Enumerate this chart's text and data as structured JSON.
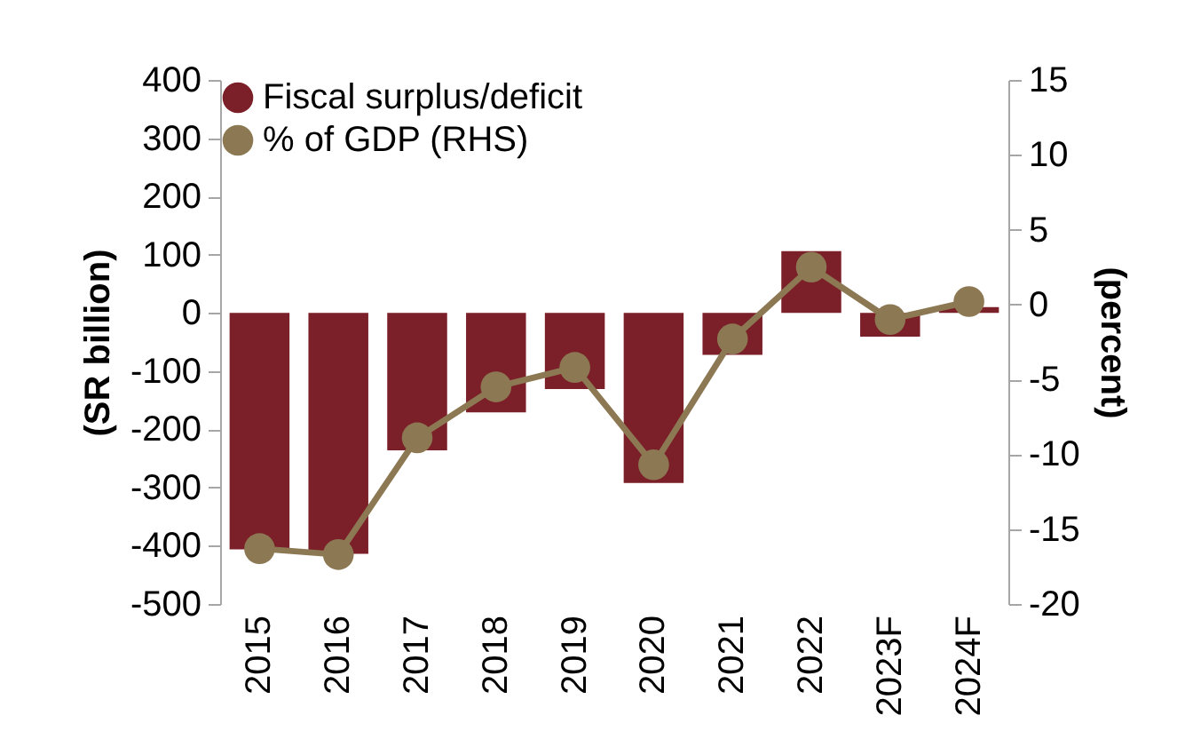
{
  "chart_data": {
    "type": "bar",
    "categories": [
      "2015",
      "2016",
      "2017",
      "2018",
      "2019",
      "2020",
      "2021",
      "2022",
      "2023F",
      "2024F"
    ],
    "series": [
      {
        "name": "Fiscal surplus/deficit",
        "color": "#7b1f28",
        "values": [
          -406,
          -414,
          -236,
          -171,
          -131,
          -292,
          -72,
          106,
          -41,
          10
        ]
      },
      {
        "name": "% of GDP (RHS)",
        "color": "#8c7853",
        "type": "line",
        "axis": "y2",
        "values": [
          -16.3,
          -16.7,
          -8.9,
          -5.5,
          -4.2,
          -10.7,
          -2.3,
          2.5,
          -1.0,
          0.2
        ]
      }
    ],
    "ylabel": "(SR billion)",
    "y2label": "(percent)",
    "ylim": [
      -500,
      400
    ],
    "yticks": [
      -500,
      -400,
      -300,
      -200,
      -100,
      0,
      100,
      200,
      300,
      400
    ],
    "y2lim": [
      -20,
      15
    ],
    "y2ticks": [
      -20,
      -15,
      -10,
      -5,
      0,
      5,
      10,
      15
    ],
    "marker": "circle",
    "grid": false,
    "legend": "top left"
  }
}
